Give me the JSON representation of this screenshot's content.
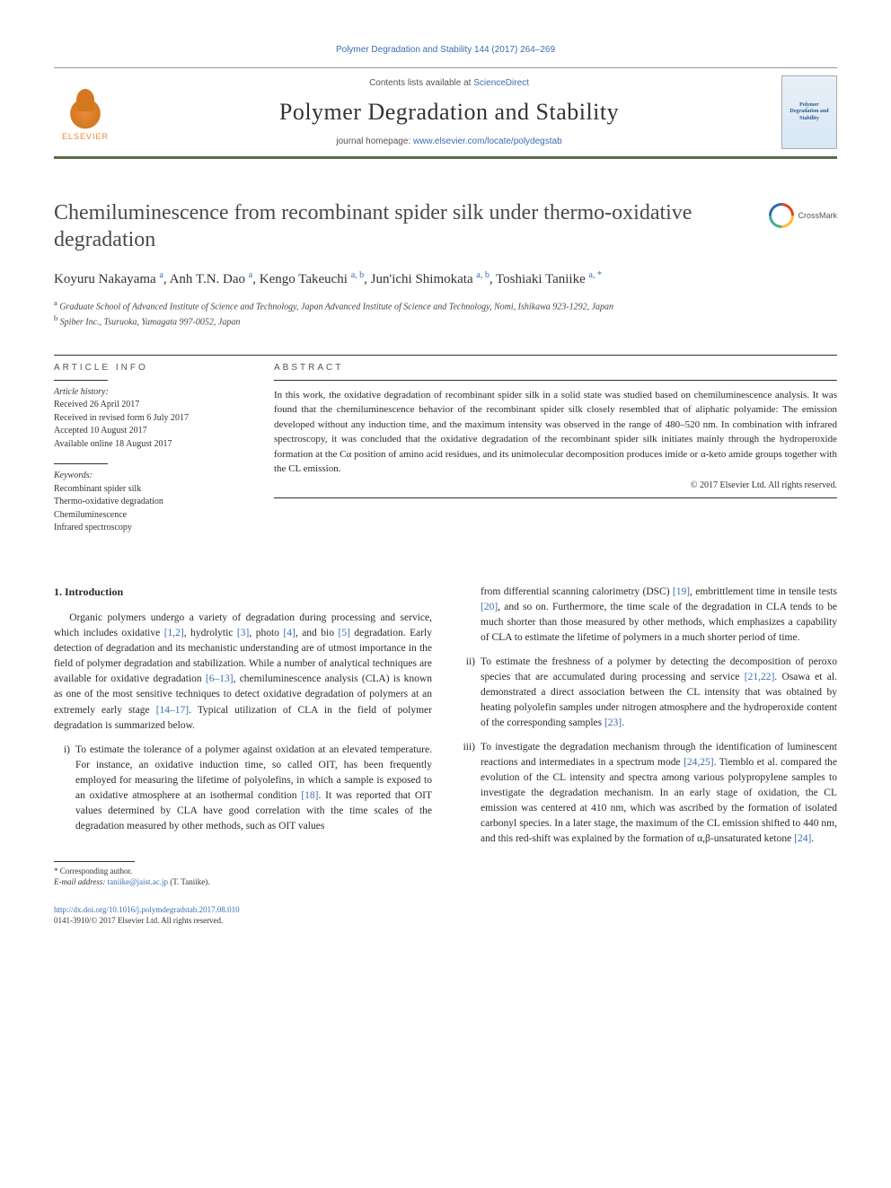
{
  "citation": "Polymer Degradation and Stability 144 (2017) 264–269",
  "header": {
    "contents_prefix": "Contents lists available at ",
    "contents_link": "ScienceDirect",
    "journal_name": "Polymer Degradation and Stability",
    "homepage_prefix": "journal homepage: ",
    "homepage_url": "www.elsevier.com/locate/polydegstab",
    "publisher": "ELSEVIER",
    "cover_title": "Polymer Degradation and Stability"
  },
  "crossmark": "CrossMark",
  "title": "Chemiluminescence from recombinant spider silk under thermo-oxidative degradation",
  "authors_html": "Koyuru Nakayama <sup>a</sup>, Anh T.N. Dao <sup>a</sup>, Kengo Takeuchi <sup>a, b</sup>, Jun'ichi Shimokata <sup>a, b</sup>, Toshiaki Taniike <sup>a, *</sup>",
  "affiliations": [
    "a Graduate School of Advanced Institute of Science and Technology, Japan Advanced Institute of Science and Technology, Nomi, Ishikawa 923-1292, Japan",
    "b Spiber Inc., Tsuruoka, Yamagata 997-0052, Japan"
  ],
  "article_info": {
    "label": "ARTICLE INFO",
    "history_label": "Article history:",
    "received": "Received 26 April 2017",
    "revised": "Received in revised form 6 July 2017",
    "accepted": "Accepted 10 August 2017",
    "online": "Available online 18 August 2017",
    "keywords_label": "Keywords:",
    "keywords": [
      "Recombinant spider silk",
      "Thermo-oxidative degradation",
      "Chemiluminescence",
      "Infrared spectroscopy"
    ]
  },
  "abstract": {
    "label": "ABSTRACT",
    "text": "In this work, the oxidative degradation of recombinant spider silk in a solid state was studied based on chemiluminescence analysis. It was found that the chemiluminescence behavior of the recombinant spider silk closely resembled that of aliphatic polyamide: The emission developed without any induction time, and the maximum intensity was observed in the range of 480–520 nm. In combination with infrared spectroscopy, it was concluded that the oxidative degradation of the recombinant spider silk initiates mainly through the hydroperoxide formation at the Cα position of amino acid residues, and its unimolecular decomposition produces imide or α-keto amide groups together with the CL emission.",
    "copyright": "© 2017 Elsevier Ltd. All rights reserved."
  },
  "body": {
    "section_heading": "1. Introduction",
    "para1": "Organic polymers undergo a variety of degradation during processing and service, which includes oxidative [1,2], hydrolytic [3], photo [4], and bio [5] degradation. Early detection of degradation and its mechanistic understanding are of utmost importance in the field of polymer degradation and stabilization. While a number of analytical techniques are available for oxidative degradation [6–13], chemiluminescence analysis (CLA) is known as one of the most sensitive techniques to detect oxidative degradation of polymers at an extremely early stage [14–17]. Typical utilization of CLA in the field of polymer degradation is summarized below.",
    "item_i_marker": "i)",
    "item_i": "To estimate the tolerance of a polymer against oxidation at an elevated temperature. For instance, an oxidative induction time, so called OIT, has been frequently employed for measuring the lifetime of polyolefins, in which a sample is exposed to an oxidative atmosphere at an isothermal condition [18]. It was reported that OIT values determined by CLA have good correlation with the time scales of the degradation measured by other methods, such as OIT values",
    "col2_top": "from differential scanning calorimetry (DSC) [19], embrittlement time in tensile tests [20], and so on. Furthermore, the time scale of the degradation in CLA tends to be much shorter than those measured by other methods, which emphasizes a capability of CLA to estimate the lifetime of polymers in a much shorter period of time.",
    "item_ii_marker": "ii)",
    "item_ii": "To estimate the freshness of a polymer by detecting the decomposition of peroxo species that are accumulated during processing and service [21,22]. Osawa et al. demonstrated a direct association between the CL intensity that was obtained by heating polyolefin samples under nitrogen atmosphere and the hydroperoxide content of the corresponding samples [23].",
    "item_iii_marker": "iii)",
    "item_iii": "To investigate the degradation mechanism through the identification of luminescent reactions and intermediates in a spectrum mode [24,25]. Tiemblo et al. compared the evolution of the CL intensity and spectra among various polypropylene samples to investigate the degradation mechanism. In an early stage of oxidation, the CL emission was centered at 410 nm, which was ascribed by the formation of isolated carbonyl species. In a later stage, the maximum of the CL emission shifted to 440 nm, and this red-shift was explained by the formation of α,β-unsaturated ketone [24]."
  },
  "footer": {
    "corr_label": "* Corresponding author.",
    "email_label": "E-mail address: ",
    "email": "taniike@jaist.ac.jp",
    "email_suffix": " (T. Taniike).",
    "doi_url": "http://dx.doi.org/10.1016/j.polymdegradstab.2017.08.010",
    "issn_line": "0141-3910/© 2017 Elsevier Ltd. All rights reserved."
  },
  "colors": {
    "link": "#3b6db5",
    "rule": "#5a6b4a",
    "text": "#2a2a2a"
  }
}
